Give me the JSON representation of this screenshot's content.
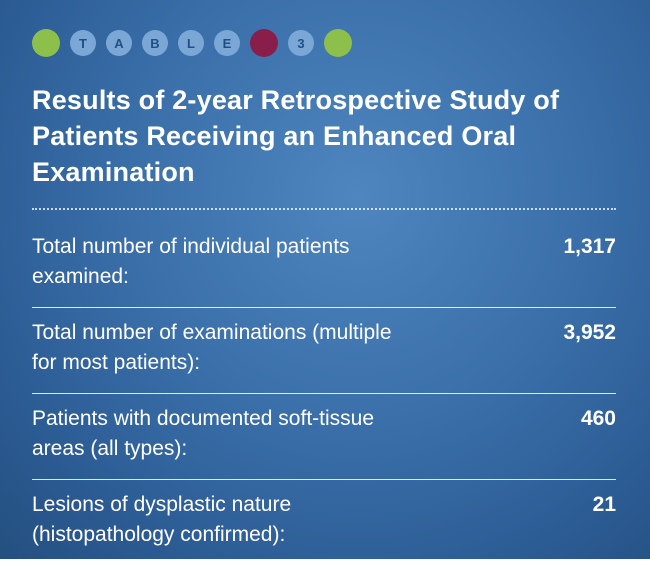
{
  "header": {
    "badges": [
      {
        "type": "dot",
        "color": "#8cc04b",
        "label": ""
      },
      {
        "type": "letter",
        "label": "T"
      },
      {
        "type": "letter",
        "label": "A"
      },
      {
        "type": "letter",
        "label": "B"
      },
      {
        "type": "letter",
        "label": "L"
      },
      {
        "type": "letter",
        "label": "E"
      },
      {
        "type": "dot",
        "color": "#8a1e4a",
        "label": ""
      },
      {
        "type": "letter",
        "label": "3"
      },
      {
        "type": "dot",
        "color": "#8cc04b",
        "label": ""
      }
    ],
    "title": "Results of 2-year Retrospective Study of Patients Receiving an Enhanced Oral Examination"
  },
  "rows": [
    {
      "label": "Total number of individual patients examined:",
      "value": "1,317"
    },
    {
      "label": "Total number of examinations (multiple for most patients):",
      "value": "3,952"
    },
    {
      "label": "Patients with documented soft-tissue areas (all types):",
      "value": "460"
    },
    {
      "label": "Lesions of dysplastic nature (histopathology confirmed):",
      "value": "21"
    }
  ]
}
